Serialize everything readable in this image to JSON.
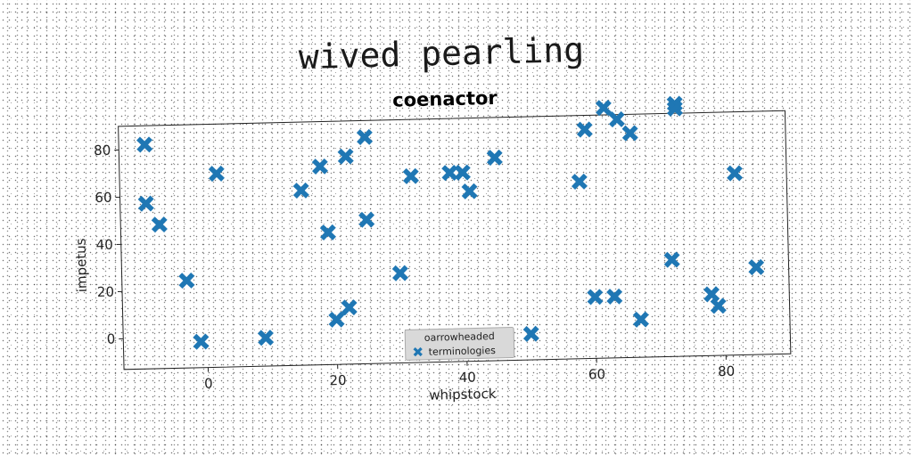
{
  "page_title": "wived pearling",
  "colors": {
    "marker": "#1f77b4",
    "frame": "#222222",
    "legend_bg": "#d9d9d9"
  },
  "chart_data": {
    "type": "scatter",
    "title": "coenactor",
    "xlabel": "whipstock",
    "ylabel": "impetus",
    "xlim": [
      -13,
      90
    ],
    "ylim": [
      -13,
      90
    ],
    "xticks": [
      0,
      20,
      40,
      60,
      80
    ],
    "yticks": [
      0,
      20,
      40,
      60,
      80
    ],
    "grid": false,
    "legend": {
      "title": "oarrowheaded",
      "placement": "lower-center"
    },
    "series": [
      {
        "name": "terminologies",
        "marker": "X",
        "color": "#1f77b4",
        "x": [
          -9,
          -9,
          -7,
          -3,
          -1,
          2,
          9,
          15,
          18,
          19,
          20,
          22,
          22,
          25,
          25,
          30,
          32,
          38,
          40,
          41,
          45,
          50,
          58,
          59,
          60,
          62,
          63,
          64,
          66,
          67,
          72,
          73,
          73,
          78,
          79,
          82,
          85
        ],
        "y": [
          82,
          57,
          48,
          24,
          -2,
          69,
          -1,
          61,
          71,
          43,
          6,
          75,
          11,
          83,
          48,
          25,
          66,
          67,
          67,
          59,
          73,
          -2,
          62,
          84,
          13,
          93,
          13,
          88,
          82,
          3,
          28,
          94,
          92,
          13,
          8,
          64,
          24
        ]
      }
    ]
  }
}
